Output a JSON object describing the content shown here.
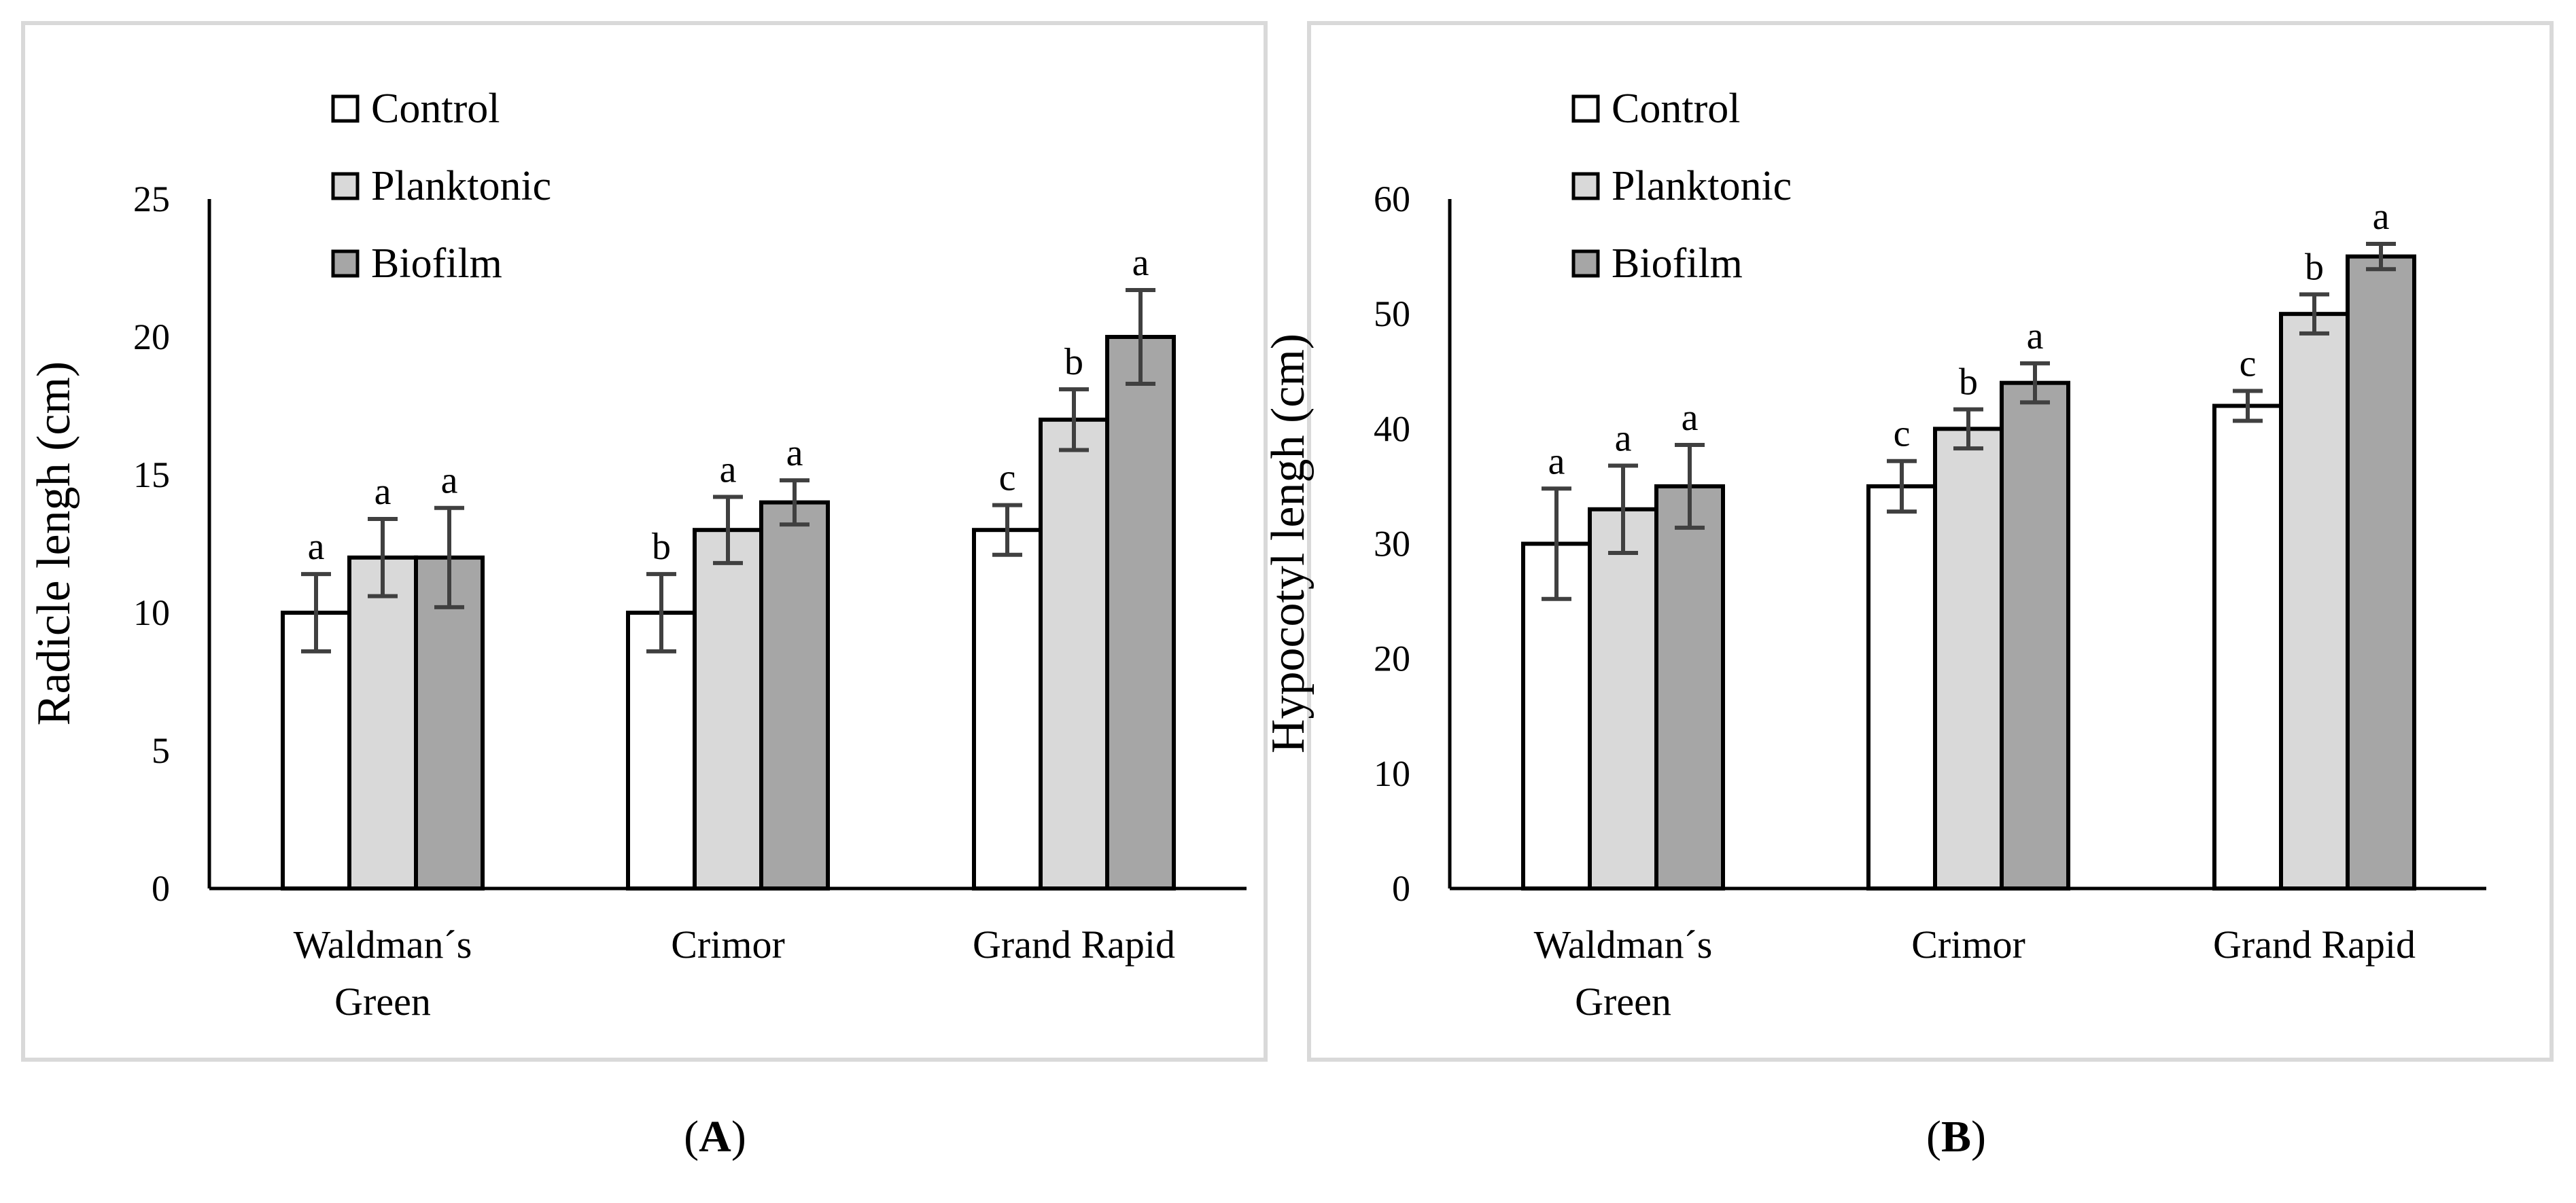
{
  "colors": {
    "control": "#ffffff",
    "planktonic": "#d9d9d9",
    "biofilm": "#a6a6a6",
    "frame": "#d9d9d9",
    "axis": "#000000",
    "error": "#404040"
  },
  "chart_data": [
    {
      "type": "bar",
      "panel": "A",
      "panel_label": {
        "open": "(",
        "letter": "A",
        "close": ")"
      },
      "title": "",
      "ylabel": "Radicle lengh (cm)",
      "xlabel": "",
      "ylim": [
        0,
        25
      ],
      "yticks": [
        0,
        5,
        10,
        15,
        20,
        25
      ],
      "grid": false,
      "legend_position": "top-left",
      "categories": [
        {
          "lines": [
            "Waldman´s",
            "Green"
          ]
        },
        {
          "lines": [
            "Crimor"
          ]
        },
        {
          "lines": [
            "Grand Rapid"
          ]
        }
      ],
      "series": [
        {
          "name": "Control",
          "color_key": "control",
          "values": [
            10,
            10,
            13
          ],
          "errors": [
            1.4,
            1.4,
            0.9
          ],
          "letters": [
            "a",
            "b",
            "c"
          ]
        },
        {
          "name": "Planktonic",
          "color_key": "planktonic",
          "values": [
            12,
            13,
            17
          ],
          "errors": [
            1.4,
            1.2,
            1.1
          ],
          "letters": [
            "a",
            "a",
            "b"
          ]
        },
        {
          "name": "Biofilm",
          "color_key": "biofilm",
          "values": [
            12,
            14,
            20
          ],
          "errors": [
            1.8,
            0.8,
            1.7
          ],
          "letters": [
            "a",
            "a",
            "a"
          ]
        }
      ]
    },
    {
      "type": "bar",
      "panel": "B",
      "panel_label": {
        "open": "(",
        "letter": "B",
        "close": ")"
      },
      "title": "",
      "ylabel": "Hypocotyl lengh (cm)",
      "xlabel": "",
      "ylim": [
        0,
        60
      ],
      "yticks": [
        0,
        10,
        20,
        30,
        40,
        50,
        60
      ],
      "grid": false,
      "legend_position": "top-left",
      "categories": [
        {
          "lines": [
            "Waldman´s",
            "Green"
          ]
        },
        {
          "lines": [
            "Crimor"
          ]
        },
        {
          "lines": [
            "Grand Rapid"
          ]
        }
      ],
      "series": [
        {
          "name": "Control",
          "color_key": "control",
          "values": [
            30,
            35,
            42
          ],
          "errors": [
            4.8,
            2.2,
            1.3
          ],
          "letters": [
            "a",
            "c",
            "c"
          ]
        },
        {
          "name": "Planktonic",
          "color_key": "planktonic",
          "values": [
            33,
            40,
            50
          ],
          "errors": [
            3.8,
            1.7,
            1.7
          ],
          "letters": [
            "a",
            "b",
            "b"
          ]
        },
        {
          "name": "Biofilm",
          "color_key": "biofilm",
          "values": [
            35,
            44,
            55
          ],
          "errors": [
            3.6,
            1.7,
            1.1
          ],
          "letters": [
            "a",
            "a",
            "a"
          ]
        }
      ]
    }
  ]
}
